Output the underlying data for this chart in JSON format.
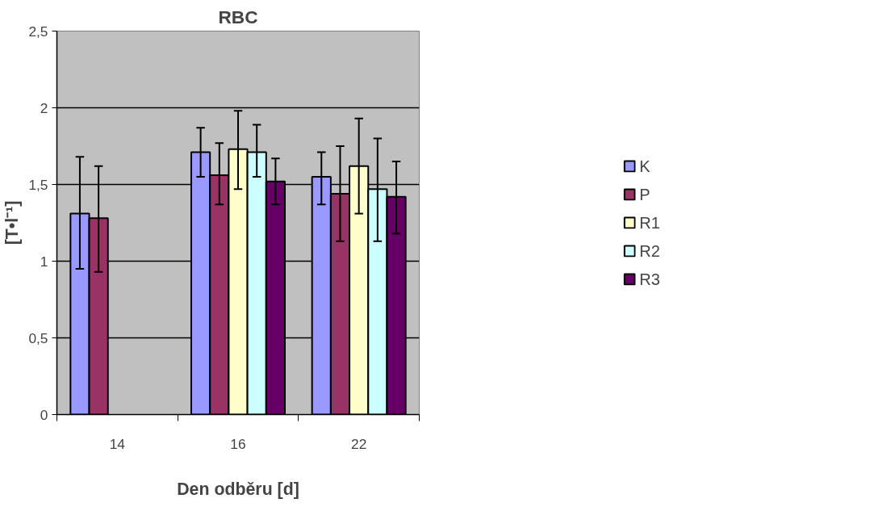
{
  "chart_data": {
    "type": "bar",
    "title": "RBC",
    "xlabel": "Den odběru [d]",
    "ylabel": "[T•l⁻¹]",
    "categories": [
      "14",
      "16",
      "22"
    ],
    "ylim": [
      0,
      2.5
    ],
    "yticks": [
      0,
      {
        "value": 0.5,
        "label": "0,5"
      },
      1,
      {
        "value": 1.5,
        "label": "1,5"
      },
      2,
      {
        "value": 2.5,
        "label": "2,5"
      }
    ],
    "grid": "y",
    "legend": "right",
    "series": [
      {
        "name": "K",
        "color": "#9999ff",
        "values": [
          1.31,
          1.71,
          1.55
        ],
        "errors": [
          [
            0.95,
            1.68
          ],
          [
            1.55,
            1.87
          ],
          [
            1.37,
            1.71
          ]
        ]
      },
      {
        "name": "P",
        "color": "#993366",
        "values": [
          1.28,
          1.56,
          1.44
        ],
        "errors": [
          [
            0.93,
            1.62
          ],
          [
            1.37,
            1.77
          ],
          [
            1.13,
            1.75
          ]
        ]
      },
      {
        "name": "R1",
        "color": "#ffffcc",
        "values": [
          null,
          1.73,
          1.62
        ],
        "errors": [
          null,
          [
            1.47,
            1.98
          ],
          [
            1.31,
            1.93
          ]
        ]
      },
      {
        "name": "R2",
        "color": "#ccffff",
        "values": [
          null,
          1.71,
          1.47
        ],
        "errors": [
          null,
          [
            1.55,
            1.89
          ],
          [
            1.13,
            1.8
          ]
        ]
      },
      {
        "name": "R3",
        "color": "#660066",
        "values": [
          null,
          1.52,
          1.42
        ],
        "errors": [
          null,
          [
            1.37,
            1.67
          ],
          [
            1.18,
            1.65
          ]
        ]
      }
    ]
  }
}
